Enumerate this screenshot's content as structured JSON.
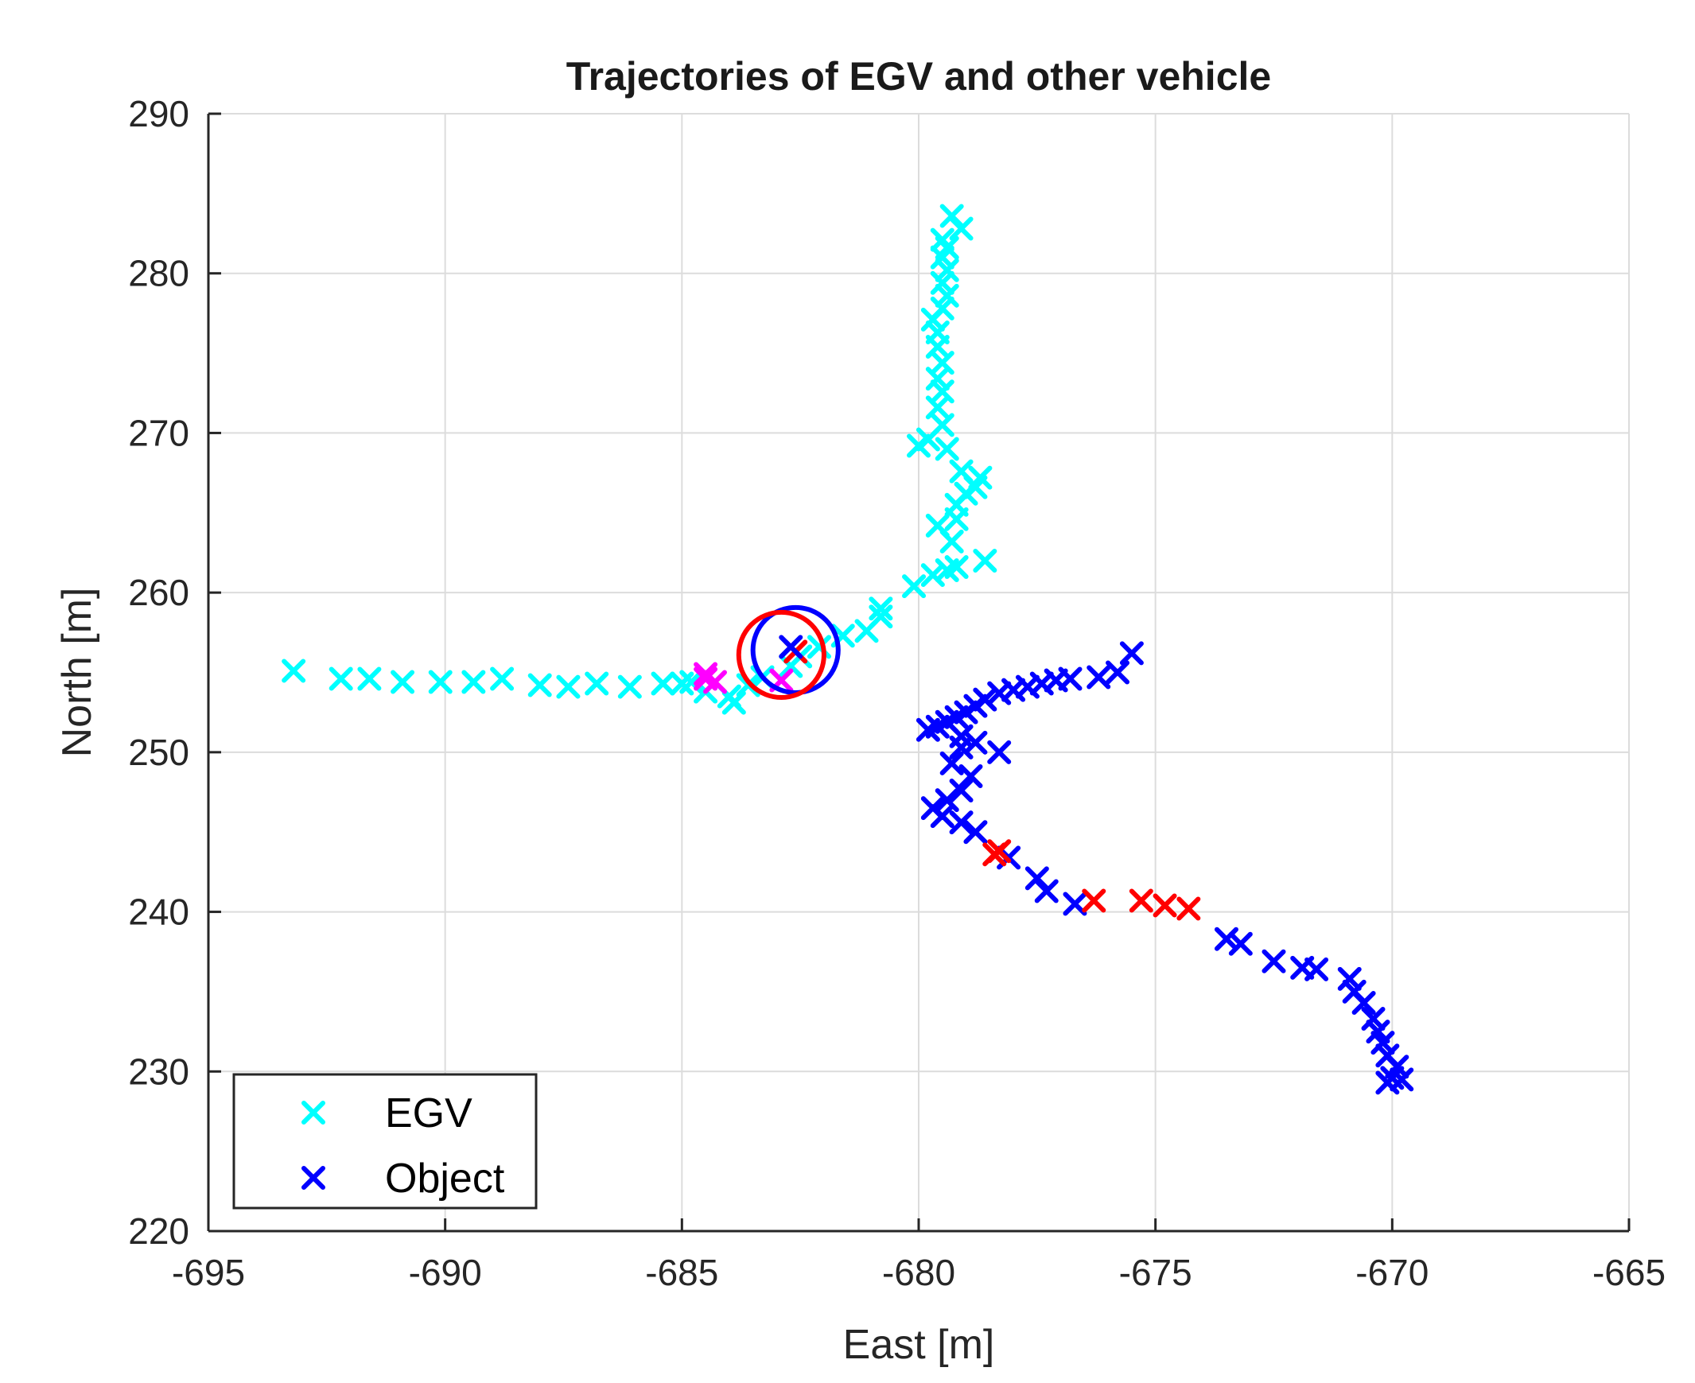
{
  "chart_data": {
    "type": "scatter",
    "title": "Trajectories of EGV and other vehicle",
    "xlabel": "East [m]",
    "ylabel": "North [m]",
    "xlim": [
      -695,
      -665
    ],
    "ylim": [
      220,
      290
    ],
    "xticks": [
      -695,
      -690,
      -685,
      -680,
      -675,
      -670,
      -665
    ],
    "yticks": [
      220,
      230,
      240,
      250,
      260,
      270,
      280,
      290
    ],
    "xtick_labels": [
      "-695",
      "-690",
      "-685",
      "-680",
      "-675",
      "-670",
      "-665"
    ],
    "ytick_labels": [
      "220",
      "230",
      "240",
      "250",
      "260",
      "270",
      "280",
      "290"
    ],
    "grid": true,
    "legend_position": "bottom-left",
    "colors": {
      "egv": "#00ffff",
      "object": "#0000ff",
      "highlight_red": "#ff0000",
      "highlight_magenta": "#ff00ff",
      "axis": "#262626",
      "grid": "#dcdcdc"
    },
    "series": [
      {
        "name": "EGV",
        "color": "#00ffff",
        "marker": "x",
        "points": [
          [
            -693.2,
            255.1
          ],
          [
            -692.2,
            254.6
          ],
          [
            -691.6,
            254.6
          ],
          [
            -690.9,
            254.4
          ],
          [
            -690.1,
            254.4
          ],
          [
            -689.4,
            254.4
          ],
          [
            -688.8,
            254.6
          ],
          [
            -688.0,
            254.2
          ],
          [
            -687.4,
            254.1
          ],
          [
            -686.8,
            254.3
          ],
          [
            -686.1,
            254.1
          ],
          [
            -685.4,
            254.3
          ],
          [
            -685.0,
            254.3
          ],
          [
            -684.8,
            254.4
          ],
          [
            -684.5,
            253.8
          ],
          [
            -684.0,
            253.5
          ],
          [
            -683.9,
            253.1
          ],
          [
            -683.6,
            254.2
          ],
          [
            -683.3,
            254.7
          ],
          [
            -682.7,
            255.4
          ],
          [
            -682.5,
            256.0
          ],
          [
            -682.1,
            256.6
          ],
          [
            -681.6,
            257.3
          ],
          [
            -681.1,
            257.6
          ],
          [
            -680.8,
            258.5
          ],
          [
            -680.8,
            259.0
          ],
          [
            -680.1,
            260.4
          ],
          [
            -679.7,
            261.1
          ],
          [
            -679.4,
            261.4
          ],
          [
            -679.2,
            261.6
          ],
          [
            -678.6,
            262.0
          ],
          [
            -679.6,
            264.2
          ],
          [
            -679.3,
            263.2
          ],
          [
            -679.2,
            264.6
          ],
          [
            -679.2,
            265.5
          ],
          [
            -679.0,
            266.2
          ],
          [
            -678.8,
            266.6
          ],
          [
            -678.7,
            267.2
          ],
          [
            -679.1,
            267.6
          ],
          [
            -679.4,
            269.0
          ],
          [
            -680.0,
            269.2
          ],
          [
            -679.8,
            269.6
          ],
          [
            -679.5,
            270.5
          ],
          [
            -679.6,
            271.6
          ],
          [
            -679.5,
            272.6
          ],
          [
            -679.6,
            273.4
          ],
          [
            -679.5,
            274.4
          ],
          [
            -679.6,
            275.4
          ],
          [
            -679.6,
            276.3
          ],
          [
            -679.7,
            277.1
          ],
          [
            -679.5,
            277.8
          ],
          [
            -679.4,
            278.6
          ],
          [
            -679.5,
            279.4
          ],
          [
            -679.4,
            280.2
          ],
          [
            -679.5,
            281.0
          ],
          [
            -679.4,
            281.6
          ],
          [
            -679.5,
            282.1
          ],
          [
            -679.1,
            282.8
          ],
          [
            -679.3,
            283.6
          ]
        ]
      },
      {
        "name": "Object",
        "color": "#0000ff",
        "marker": "x",
        "points": [
          [
            -675.5,
            256.2
          ],
          [
            -675.8,
            255.0
          ],
          [
            -676.2,
            254.7
          ],
          [
            -676.8,
            254.6
          ],
          [
            -677.1,
            254.5
          ],
          [
            -677.4,
            254.3
          ],
          [
            -677.7,
            254.1
          ],
          [
            -678.0,
            253.9
          ],
          [
            -678.3,
            253.7
          ],
          [
            -678.6,
            253.3
          ],
          [
            -678.8,
            252.9
          ],
          [
            -679.0,
            252.5
          ],
          [
            -679.2,
            252.2
          ],
          [
            -679.4,
            251.9
          ],
          [
            -679.6,
            251.6
          ],
          [
            -679.8,
            251.4
          ],
          [
            -679.1,
            251.0
          ],
          [
            -678.8,
            250.6
          ],
          [
            -679.1,
            250.3
          ],
          [
            -678.3,
            250.0
          ],
          [
            -679.3,
            249.3
          ],
          [
            -678.9,
            248.5
          ],
          [
            -679.1,
            247.6
          ],
          [
            -679.4,
            247.0
          ],
          [
            -679.7,
            246.5
          ],
          [
            -679.5,
            246.0
          ],
          [
            -679.1,
            245.6
          ],
          [
            -678.8,
            245.0
          ],
          [
            -678.1,
            243.4
          ],
          [
            -677.5,
            242.1
          ],
          [
            -677.3,
            241.3
          ],
          [
            -676.7,
            240.5
          ],
          [
            -673.5,
            238.3
          ],
          [
            -673.2,
            238.0
          ],
          [
            -672.5,
            236.9
          ],
          [
            -671.9,
            236.5
          ],
          [
            -671.6,
            236.4
          ],
          [
            -670.9,
            235.8
          ],
          [
            -670.8,
            235.0
          ],
          [
            -670.6,
            234.3
          ],
          [
            -670.4,
            233.3
          ],
          [
            -670.3,
            232.5
          ],
          [
            -670.2,
            231.8
          ],
          [
            -670.1,
            231.0
          ],
          [
            -669.9,
            230.3
          ],
          [
            -670.0,
            229.6
          ],
          [
            -670.1,
            229.3
          ],
          [
            -669.8,
            229.5
          ]
        ]
      },
      {
        "name": "highlight-red",
        "color": "#ff0000",
        "marker": "x",
        "points": [
          [
            -678.4,
            243.6
          ],
          [
            -678.3,
            243.8
          ],
          [
            -676.3,
            240.7
          ],
          [
            -675.3,
            240.7
          ],
          [
            -674.8,
            240.4
          ],
          [
            -674.3,
            240.2
          ]
        ]
      },
      {
        "name": "highlight-magenta",
        "color": "#ff00ff",
        "marker": "x",
        "points": [
          [
            -684.5,
            254.6
          ],
          [
            -684.3,
            254.4
          ],
          [
            -684.5,
            254.9
          ],
          [
            -682.9,
            254.5
          ]
        ]
      }
    ],
    "circles": [
      {
        "name": "blue-circle",
        "color": "#0000ff",
        "center": [
          -682.6,
          256.4
        ],
        "radius_m": 0.9
      },
      {
        "name": "red-circle",
        "color": "#ff0000",
        "center": [
          -682.9,
          256.1
        ],
        "radius_m": 0.9
      }
    ],
    "circle_markers": [
      {
        "name": "red-x-at-circle",
        "color": "#ff0000",
        "point": [
          -682.6,
          256.3
        ]
      },
      {
        "name": "blue-x-at-circle",
        "color": "#0000ff",
        "point": [
          -682.7,
          256.6
        ]
      }
    ],
    "legend": [
      {
        "label": "EGV",
        "color": "#00ffff"
      },
      {
        "label": "Object",
        "color": "#0000ff"
      }
    ]
  }
}
